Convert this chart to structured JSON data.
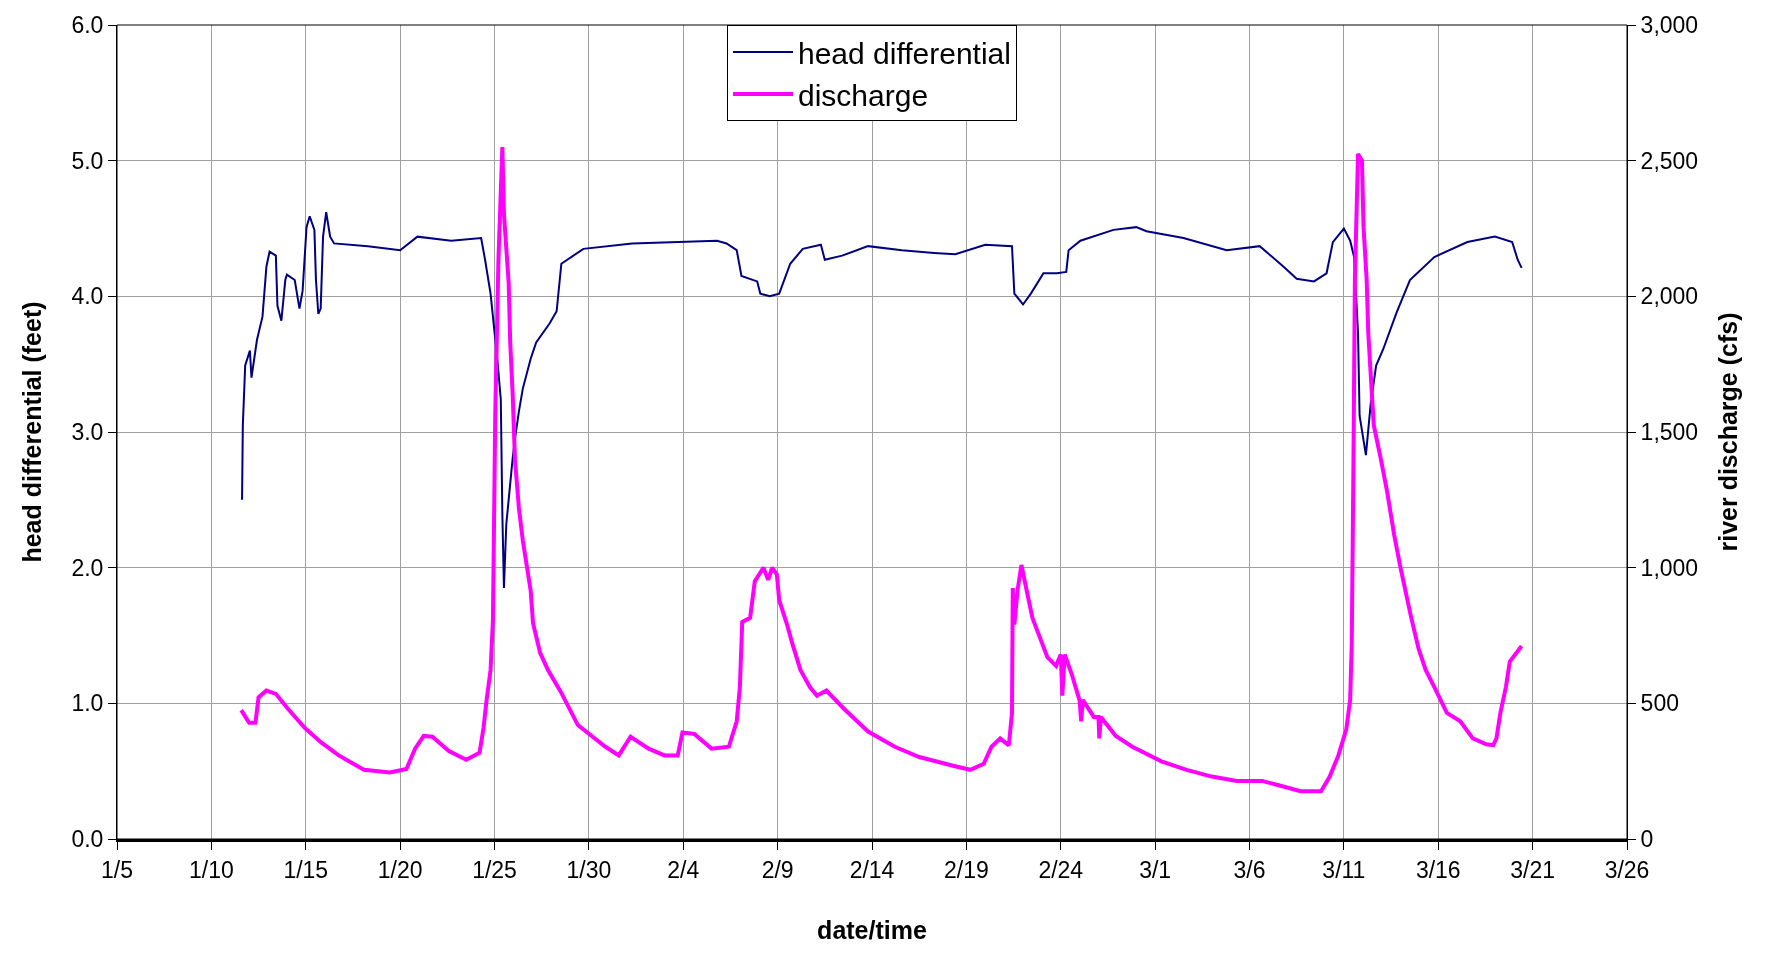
{
  "chart_data": {
    "type": "line",
    "xlabel": "date/time",
    "ylabel": "head differential (feet)",
    "y2label": "river discharge (cfs)",
    "xlim": [
      "--01-05",
      "--03-26"
    ],
    "xticks": [
      {
        "value": "--01-05",
        "label": "1/5"
      },
      {
        "value": "--01-10",
        "label": "1/10"
      },
      {
        "value": "--01-15",
        "label": "1/15"
      },
      {
        "value": "--01-20",
        "label": "1/20"
      },
      {
        "value": "--01-25",
        "label": "1/25"
      },
      {
        "value": "--01-30",
        "label": "1/30"
      },
      {
        "value": "--02-04",
        "label": "2/4"
      },
      {
        "value": "--02-09",
        "label": "2/9"
      },
      {
        "value": "--02-14",
        "label": "2/14"
      },
      {
        "value": "--02-19",
        "label": "2/19"
      },
      {
        "value": "--02-24",
        "label": "2/24"
      },
      {
        "value": "--03-01",
        "label": "3/1"
      },
      {
        "value": "--03-06",
        "label": "3/6"
      },
      {
        "value": "--03-11",
        "label": "3/11"
      },
      {
        "value": "--03-16",
        "label": "3/16"
      },
      {
        "value": "--03-21",
        "label": "3/21"
      },
      {
        "value": "--03-26",
        "label": "3/26"
      }
    ],
    "ylim": [
      0,
      6
    ],
    "yticks": [
      {
        "value": 0,
        "label": "0.0"
      },
      {
        "value": 1,
        "label": "1.0"
      },
      {
        "value": 2,
        "label": "2.0"
      },
      {
        "value": 3,
        "label": "3.0"
      },
      {
        "value": 4,
        "label": "4.0"
      },
      {
        "value": 5,
        "label": "5.0"
      },
      {
        "value": 6,
        "label": "6.0"
      }
    ],
    "y2lim": [
      0,
      3000
    ],
    "y2ticks": [
      0,
      500,
      {
        "value": 1000,
        "label": "1,000"
      },
      {
        "value": 1500,
        "label": "1,500"
      },
      {
        "value": 2000,
        "label": "2,000"
      },
      {
        "value": 2500,
        "label": "2,500"
      },
      {
        "value": 3000,
        "label": "3,000"
      }
    ],
    "grid": true,
    "legend": "top",
    "marker": "none",
    "line_style": "solid",
    "series": [
      {
        "name": "head differential",
        "color": "#000080",
        "x": [
          "--01-11T15:00",
          "--01-11T16:00",
          "--01-11T19:00",
          "--01-12T01:00",
          "--01-12T03:00",
          "--01-12T10:00",
          "--01-12T17:00",
          "--01-12T22:00",
          "--01-13T02:00",
          "--01-13T10:00",
          "--01-13T12:00",
          "--01-13T17:00",
          "--01-13T22:00",
          "--01-14T00:00",
          "--01-14T10:00",
          "--01-14T16:00",
          "--01-14T20:00",
          "--01-15T01:00",
          "--01-15T05:00",
          "--01-15T11:00",
          "--01-15T13:00",
          "--01-15T16:00",
          "--01-15T19:00",
          "--01-15T22:00",
          "--01-16T02:00",
          "--01-16T07:00",
          "--01-16T12:00",
          "--01-18T07:00",
          "--01-20T00:00",
          "--01-20T22:00",
          "--01-22T17:00",
          "--01-24T07:00",
          "--01-24T12:00",
          "--01-24T19:00",
          "--01-25T01:00",
          "--01-25T04:00",
          "--01-25T08:00",
          "--01-25T10:00",
          "--01-25T12:00",
          "--01-25T15:00",
          "--01-25T19:00",
          "--01-25T23:00",
          "--01-26T02:00",
          "--01-26T07:00",
          "--01-26T12:00",
          "--01-26T22:00",
          "--01-27T05:00",
          "--01-27T22:00",
          "--01-28T07:00",
          "--01-28T13:00",
          "--01-29T17:00",
          "--02-01T07:00",
          "--02-05T19:00",
          "--02-06T07:00",
          "--02-06T20:00",
          "--02-07T02:00",
          "--02-07T22:00",
          "--02-08T02:00",
          "--02-08T14:00",
          "--02-09T02:00",
          "--02-09T16:00",
          "--02-10T08:00",
          "--02-11T07:00",
          "--02-11T12:00",
          "--02-12T10:00",
          "--02-13T19:00",
          "--02-15T14:00",
          "--02-17T07:00",
          "--02-18T10:00",
          "--02-20T00:00",
          "--02-21T10:00",
          "--02-21T13:00",
          "--02-22T00:00",
          "--02-22T10:00",
          "--02-23T02:00",
          "--02-23T19:00",
          "--02-24T07:00",
          "--02-24T10:00",
          "--02-25T01:00",
          "--02-26T19:00",
          "--02-28T00:00",
          "--02-28T13:00",
          "--03-02T12:00",
          "--03-04T19:00",
          "--03-06T13:00",
          "--03-07T19:00",
          "--03-08T12:00",
          "--03-09T10:00",
          "--03-10T02:00",
          "--03-10T10:00",
          "--03-11T00:00",
          "--03-11T08:00",
          "--03-11T13:00",
          "--03-11T18:00",
          "--03-11T20:00",
          "--03-12T04:00",
          "--03-12T10:00",
          "--03-12T17:00",
          "--03-13T02:00",
          "--03-13T19:00",
          "--03-14T12:00",
          "--03-15T19:00",
          "--03-17T13:00",
          "--03-19T00:00",
          "--03-19T22:00",
          "--03-20T05:00",
          "--03-20T10:00"
        ],
        "values": [
          2.5,
          3.05,
          3.49,
          3.6,
          3.4,
          3.68,
          3.85,
          4.22,
          4.33,
          4.3,
          3.93,
          3.82,
          4.12,
          4.16,
          4.12,
          3.91,
          4.04,
          4.51,
          4.59,
          4.49,
          4.12,
          3.87,
          3.91,
          4.44,
          4.62,
          4.44,
          4.39,
          4.37,
          4.34,
          4.44,
          4.41,
          4.43,
          4.27,
          4.02,
          3.68,
          3.51,
          3.24,
          2.39,
          1.85,
          2.32,
          2.56,
          2.8,
          2.95,
          3.15,
          3.32,
          3.54,
          3.66,
          3.8,
          3.89,
          4.24,
          4.35,
          4.39,
          4.41,
          4.39,
          4.34,
          4.15,
          4.11,
          4.02,
          4.0,
          4.02,
          4.24,
          4.35,
          4.38,
          4.27,
          4.3,
          4.37,
          4.34,
          4.32,
          4.31,
          4.38,
          4.37,
          4.02,
          3.94,
          4.02,
          4.17,
          4.17,
          4.18,
          4.34,
          4.41,
          4.49,
          4.51,
          4.48,
          4.43,
          4.34,
          4.37,
          4.22,
          4.13,
          4.11,
          4.17,
          4.4,
          4.5,
          4.41,
          4.29,
          3.73,
          3.12,
          2.83,
          3.2,
          3.49,
          3.61,
          3.88,
          4.12,
          4.29,
          4.4,
          4.44,
          4.4,
          4.27,
          4.21
        ]
      },
      {
        "name": "discharge",
        "color": "#ff00ff",
        "axis": "y2",
        "x": [
          "--01-11T14:00",
          "--01-12T00:00",
          "--01-12T08:00",
          "--01-12T12:00",
          "--01-12T22:00",
          "--01-13T10:00",
          "--01-14T01:00",
          "--01-14T23:00",
          "--01-15T20:00",
          "--01-16T18:00",
          "--01-18T02:00",
          "--01-19T11:00",
          "--01-20T08:00",
          "--01-20T19:00",
          "--01-21T06:00",
          "--01-21T17:00",
          "--01-22T14:00",
          "--01-23T12:00",
          "--01-24T05:00",
          "--01-24T10:00",
          "--01-24T14:00",
          "--01-24T19:00",
          "--01-24T22:00",
          "--01-25T01:00",
          "--01-25T05:00",
          "--01-25T10:00",
          "--01-25T12:00",
          "--01-25T18:00",
          "--01-25T20:00",
          "--01-25T23:00",
          "--01-26T02:00",
          "--01-26T07:00",
          "--01-26T12:00",
          "--01-26T22:00",
          "--01-27T01:00",
          "--01-27T10:00",
          "--01-27T20:00",
          "--01-28T12:00",
          "--01-29T10:00",
          "--01-30T21:00",
          "--01-31T14:00",
          "--02-01T05:00",
          "--02-02T04:00",
          "--02-03T00:00",
          "--02-03T17:00",
          "--02-03T23:00",
          "--02-04T14:00",
          "--02-05T12:00",
          "--02-06T10:00",
          "--02-06T20:00",
          "--02-07T00:00",
          "--02-07T03:00",
          "--02-07T13:00",
          "--02-07T19:00",
          "--02-08T06:00",
          "--02-08T12:00",
          "--02-08T17:00",
          "--02-08T23:00",
          "--02-09T02:00",
          "--02-09T12:00",
          "--02-09T19:00",
          "--02-10T05:00",
          "--02-10T17:00",
          "--02-11T02:00",
          "--02-11T14:00",
          "--02-12T12:00",
          "--02-13T19:00",
          "--02-15T05:00",
          "--02-16T12:00",
          "--02-18T07:00",
          "--02-19T05:00",
          "--02-19T22:00",
          "--02-20T08:00",
          "--02-20T19:00",
          "--02-21T06:00",
          "--02-21T10:00",
          "--02-21T11:00",
          "--02-21T13:00",
          "--02-21T17:00",
          "--02-21T22:00",
          "--02-22T04:00",
          "--02-22T12:00",
          "--02-23T07:00",
          "--02-23T18:00",
          "--02-24T00:00",
          "--02-24T02:00",
          "--02-24T05:00",
          "--02-24T14:00",
          "--02-25T00:00",
          "--02-25T02:00",
          "--02-25T04:00",
          "--02-25T18:00",
          "--02-26T00:00",
          "--02-26T01:00",
          "--02-26T03:00",
          "--02-26T22:00",
          "--02-27T19:00",
          "--03-01T08:00",
          "--03-02T16:00",
          "--03-04T00:00",
          "--03-05T08:00",
          "--03-06T16:00",
          "--03-07T13:00",
          "--03-08T17:00",
          "--03-09T19:00",
          "--03-10T06:00",
          "--03-10T17:00",
          "--03-11T03:00",
          "--03-11T08:00",
          "--03-11T10:00",
          "--03-11T12:00",
          "--03-11T14:00",
          "--03-11T18:00",
          "--03-11T23:00",
          "--03-12T01:00",
          "--03-12T05:00",
          "--03-12T07:00",
          "--03-12T14:00",
          "--03-12T23:00",
          "--03-13T07:00",
          "--03-13T16:00",
          "--03-14T00:00",
          "--03-14T10:00",
          "--03-14T14:00",
          "--03-14T23:00",
          "--03-15T08:00",
          "--03-15T19:00",
          "--03-16T11:00",
          "--03-17T04:00",
          "--03-17T20:00",
          "--03-18T13:00",
          "--03-18T22:00",
          "--03-19T02:00",
          "--03-19T07:00",
          "--03-19T14:00",
          "--03-19T19:00",
          "--03-20T10:00"
        ],
        "values": [
          475,
          428,
          428,
          522,
          547,
          535,
          481,
          409,
          355,
          308,
          255,
          245,
          258,
          333,
          380,
          377,
          324,
          292,
          318,
          409,
          513,
          623,
          805,
          1575,
          2135,
          2550,
          2305,
          2050,
          1830,
          1645,
          1400,
          1220,
          1100,
          915,
          795,
          686,
          623,
          544,
          420,
          340,
          308,
          377,
          333,
          308,
          308,
          393,
          387,
          333,
          340,
          434,
          560,
          800,
          815,
          950,
          1000,
          955,
          1000,
          975,
          880,
          790,
          717,
          623,
          560,
          528,
          547,
          481,
          396,
          340,
          302,
          270,
          255,
          277,
          340,
          371,
          345,
          465,
          925,
          790,
          915,
          1010,
          925,
          815,
          670,
          638,
          680,
          528,
          680,
          607,
          510,
          434,
          513,
          450,
          450,
          371,
          450,
          380,
          340,
          286,
          255,
          230,
          214,
          214,
          198,
          176,
          176,
          230,
          308,
          403,
          513,
          717,
          1330,
          2060,
          2525,
          2500,
          2255,
          2060,
          1865,
          1525,
          1400,
          1280,
          1120,
          1000,
          865,
          811,
          701,
          623,
          560,
          465,
          434,
          371,
          349,
          346,
          371,
          465,
          560,
          654,
          711
        ]
      }
    ]
  }
}
